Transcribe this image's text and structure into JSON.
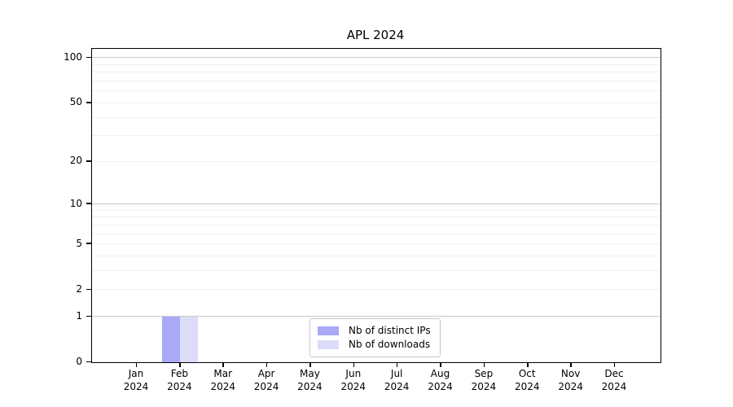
{
  "chart_data": {
    "type": "bar",
    "title": "APL 2024",
    "xlabel": "",
    "ylabel": "",
    "x_tick_months": [
      "Jan",
      "Feb",
      "Mar",
      "Apr",
      "May",
      "Jun",
      "Jul",
      "Aug",
      "Sep",
      "Oct",
      "Nov",
      "Dec"
    ],
    "x_tick_year": "2024",
    "y_scale": "log10(1+y)",
    "ylim": [
      0,
      115
    ],
    "y_ticks": [
      0,
      1,
      2,
      5,
      10,
      20,
      50,
      100
    ],
    "y_major_gridlines": [
      1,
      10,
      100
    ],
    "y_minor_gridlines": [
      2,
      3,
      4,
      5,
      6,
      7,
      8,
      9,
      20,
      30,
      40,
      50,
      60,
      70,
      80,
      90
    ],
    "grid": true,
    "legend_position": "bottom-center-inside",
    "series": [
      {
        "name": "Nb of distinct IPs",
        "color": "#a9a9f5",
        "values": [
          0,
          1,
          0,
          0,
          0,
          0,
          0,
          0,
          0,
          0,
          0,
          0
        ]
      },
      {
        "name": "Nb of downloads",
        "color": "#dcdcf8",
        "values": [
          0,
          1,
          0,
          0,
          0,
          0,
          0,
          0,
          0,
          0,
          0,
          0
        ]
      }
    ],
    "colors": {
      "axis": "#000000",
      "grid_major": "#c9c9c9",
      "grid_minor": "#f0f0f0",
      "background": "#ffffff"
    }
  }
}
